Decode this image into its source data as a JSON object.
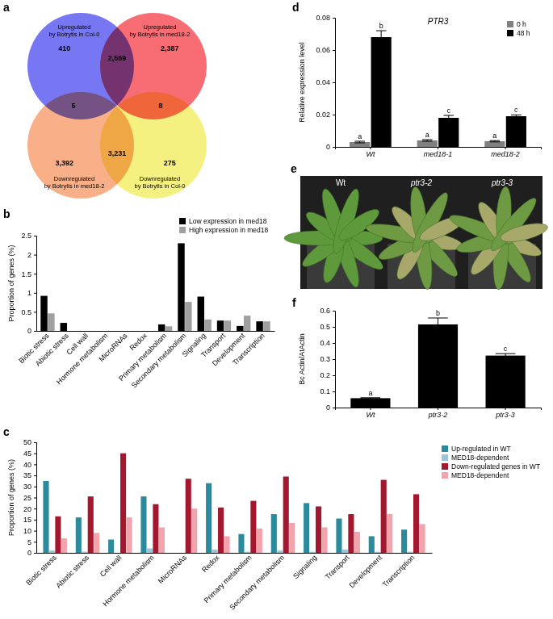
{
  "chart_data": [
    {
      "type": "venn",
      "title": "a",
      "sets": [
        {
          "name": "Upregulated\nby Botrytis in Col-0",
          "color": "#5f5ff2"
        },
        {
          "name": "Upregulated\nby Botrytis in med18-2",
          "color": "#f7525c"
        },
        {
          "name": "Downregulated\nby Botrytis in med18-2",
          "color": "#f8a274"
        },
        {
          "name": "Downregulated\nby Botrytis in Col-0",
          "color": "#f3ee6a"
        }
      ],
      "region_sets": [
        [
          0
        ],
        [
          0,
          1
        ],
        [
          1
        ],
        [
          0,
          2
        ],
        [
          1,
          3
        ],
        [
          2
        ],
        [
          2,
          3
        ],
        [
          3
        ]
      ],
      "values": [
        410,
        2569,
        2387,
        5,
        8,
        3392,
        3231,
        275
      ],
      "value_labels": [
        "410",
        "2,569",
        "2,387",
        "5",
        "8",
        "3,392",
        "3,231",
        "275"
      ]
    },
    {
      "type": "bar",
      "title": "b",
      "categories": [
        "Biotic stress",
        "Abiotic stress",
        "Cell wall",
        "Hormone metabolism",
        "MicroRNAs",
        "Redox",
        "Primary metabolism",
        "Secondary metabolism",
        "Signaling",
        "Transport",
        "Development",
        "Transcription"
      ],
      "series": [
        {
          "name": "Low expression in med18",
          "color": "#000000",
          "values": [
            0.92,
            0.21,
            0,
            0,
            0,
            0,
            0.17,
            2.3,
            0.9,
            0.27,
            0.13,
            0.25
          ]
        },
        {
          "name": "High expression in med18",
          "color": "#a0a0a0",
          "values": [
            0.46,
            0,
            0,
            0,
            0,
            0,
            0.12,
            0.76,
            0.3,
            0.27,
            0.4,
            0.25
          ]
        }
      ],
      "y_label": "Proportion of genes (%)",
      "ylim": [
        0,
        2.5
      ],
      "yticks": [
        0,
        0.5,
        1,
        1.5,
        2,
        2.5
      ],
      "legend": "top-right"
    },
    {
      "type": "bar",
      "title": "c",
      "categories": [
        "Biotic stress",
        "Abiotic stress",
        "Cell wall",
        "Hormone metabolism",
        "MicroRNAs",
        "Redox",
        "Primary metabolism",
        "Secondary metabolism",
        "Signaling",
        "Transport",
        "Development",
        "Transcription"
      ],
      "series": [
        {
          "name": "Up-regulated in WT",
          "color": "#2b8a9b",
          "values": [
            32.5,
            16,
            6,
            25.5,
            0,
            31.5,
            8.5,
            17.5,
            22.5,
            15.5,
            7.5,
            10.5
          ]
        },
        {
          "name": "MED18-dependent",
          "color": "#9cc6d6",
          "values": [
            1,
            0.5,
            0,
            2,
            0,
            1.5,
            0.5,
            1,
            0.5,
            1.5,
            0.5,
            0.5
          ]
        },
        {
          "name": "Down-regulated genes in WT",
          "color": "#a3172f",
          "values": [
            16.5,
            25.5,
            45,
            22,
            33.5,
            20.5,
            23.5,
            34.5,
            21,
            17.5,
            33,
            26.5
          ]
        },
        {
          "name": "MED18-dependent",
          "color": "#f2a3ab",
          "values": [
            6.5,
            9,
            16,
            11.5,
            20,
            7.5,
            11,
            13.5,
            11.5,
            9.5,
            17.5,
            13
          ]
        }
      ],
      "y_label": "Proportion of genes (%)",
      "ylim": [
        0,
        50
      ],
      "yticks": [
        0,
        5,
        10,
        15,
        20,
        25,
        30,
        35,
        40,
        45,
        50
      ],
      "legend": "right"
    },
    {
      "type": "bar",
      "title": "d",
      "subtitle": "PTR3",
      "categories": [
        "Wt",
        "med18-1",
        "med18-2"
      ],
      "series": [
        {
          "name": "0 h",
          "color": "#808080",
          "values": [
            0.003,
            0.004,
            0.0035
          ],
          "errors": [
            0.0005,
            0.0005,
            0.0004
          ],
          "letters": [
            "a",
            "a",
            "a"
          ]
        },
        {
          "name": "48 h",
          "color": "#000000",
          "values": [
            0.068,
            0.018,
            0.019
          ],
          "errors": [
            0.004,
            0.0015,
            0.0008
          ],
          "letters": [
            "b",
            "c",
            "c"
          ]
        }
      ],
      "y_label": "Relative expression level",
      "ylim": [
        0,
        0.08
      ],
      "yticks": [
        0,
        0.02,
        0.04,
        0.06,
        0.08
      ],
      "legend": "top-right"
    },
    {
      "type": "image",
      "title": "e",
      "labels": [
        "Wt",
        "ptr3-2",
        "ptr3-3"
      ]
    },
    {
      "type": "bar",
      "title": "f",
      "categories": [
        "Wt",
        "ptr3-2",
        "ptr3-3"
      ],
      "series": [
        {
          "color": "#000000",
          "values": [
            0.058,
            0.515,
            0.322
          ],
          "errors": [
            0.003,
            0.04,
            0.012
          ],
          "letters": [
            "a",
            "b",
            "c"
          ]
        }
      ],
      "y_label": "Bc Actin/AtActin",
      "ylim": [
        0,
        0.6
      ],
      "yticks": [
        0,
        0.1,
        0.2,
        0.3,
        0.4,
        0.5,
        0.6
      ]
    }
  ]
}
